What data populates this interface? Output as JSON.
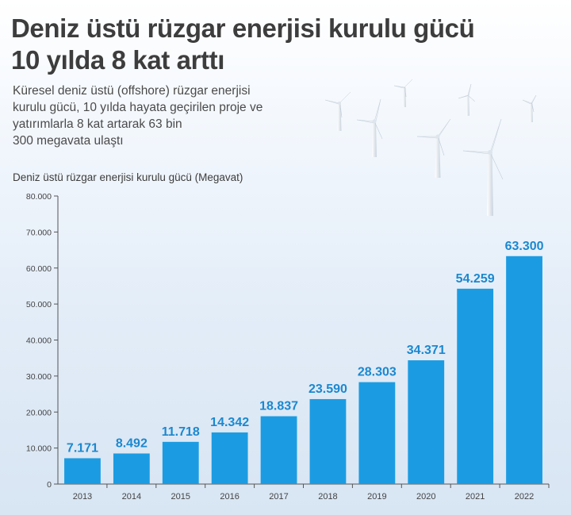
{
  "header": {
    "title_line1": "Deniz üstü rüzgar enerjisi kurulu gücü",
    "title_line2": "10 yılda 8 kat arttı",
    "subtitle_lines": [
      "Küresel deniz üstü (offshore) rüzgar enerjisi",
      "kurulu gücü, 10 yılda hayata geçirilen proje ve",
      "yatırımlarla 8 kat artarak 63 bin",
      "300 megavata ulaştı"
    ]
  },
  "colors": {
    "bar": "#1b9ce2",
    "value_label": "#1b88cf",
    "title": "#3d3d3d"
  },
  "decoration": {
    "icon": "wind-turbine-icon"
  },
  "chart_data": {
    "type": "bar",
    "ylabel": "Deniz üstü rüzgar enerjisi kurulu gücü (Megavat)",
    "xlabel": "",
    "categories": [
      "2013",
      "2014",
      "2015",
      "2016",
      "2017",
      "2018",
      "2019",
      "2020",
      "2021",
      "2022"
    ],
    "values": [
      7171,
      8492,
      11718,
      14342,
      18837,
      23590,
      28303,
      34371,
      54259,
      63300
    ],
    "value_labels": [
      "7.171",
      "8.492",
      "11.718",
      "14.342",
      "18.837",
      "23.590",
      "28.303",
      "34.371",
      "54.259",
      "63.300"
    ],
    "ylim": [
      0,
      80000
    ],
    "yticks": [
      0,
      10000,
      20000,
      30000,
      40000,
      50000,
      60000,
      70000,
      80000
    ],
    "ytick_labels": [
      "0",
      "10.000",
      "20.000",
      "30.000",
      "40.000",
      "50.000",
      "60.000",
      "70.000",
      "80.000"
    ],
    "grid": false
  }
}
